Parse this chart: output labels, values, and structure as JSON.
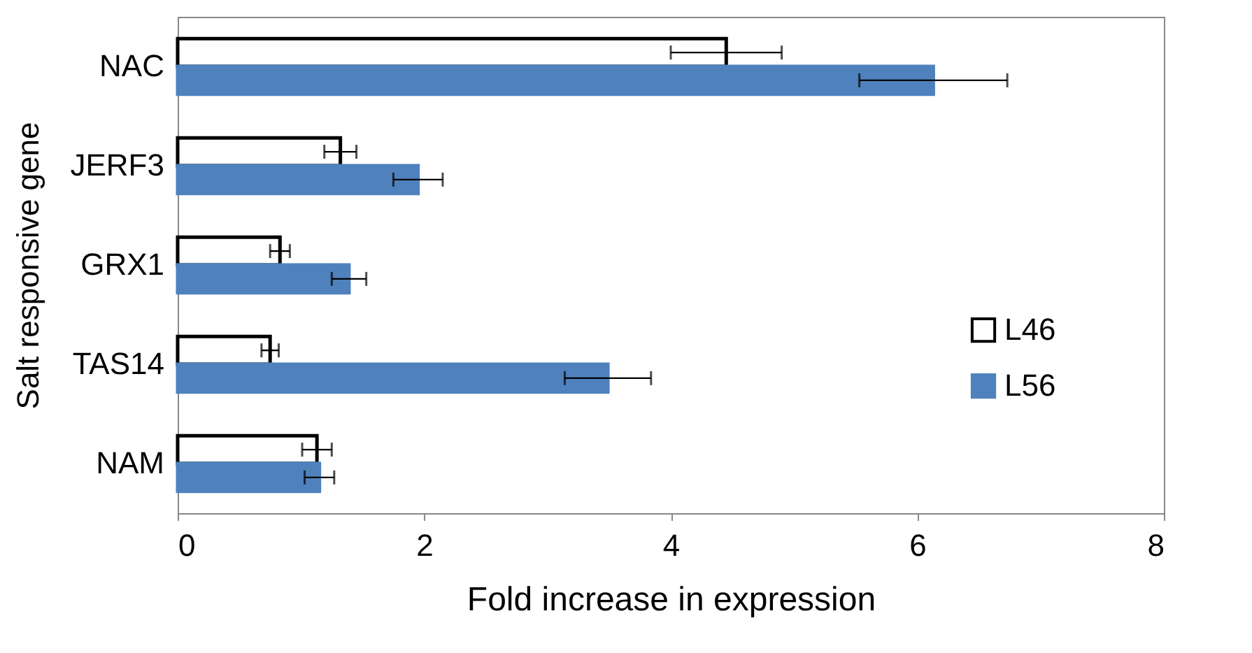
{
  "chart_data": {
    "type": "bar",
    "orientation": "horizontal",
    "xlabel": "Fold increase in expression",
    "ylabel": "Salt responsive gene",
    "categories": [
      "NAC",
      "JERF3",
      "GRX1",
      "TAS14",
      "NAM"
    ],
    "series": [
      {
        "name": "L46",
        "color": "#ffffff",
        "values": [
          4.45,
          1.32,
          0.83,
          0.75,
          1.13
        ],
        "errors": [
          0.45,
          0.13,
          0.08,
          0.07,
          0.12
        ]
      },
      {
        "name": "L56",
        "color": "#4f81bd",
        "values": [
          6.13,
          1.95,
          1.39,
          3.49,
          1.15
        ],
        "errors": [
          0.6,
          0.2,
          0.14,
          0.35,
          0.12
        ]
      }
    ],
    "xlim": [
      0,
      8
    ],
    "xticks": [
      0,
      2,
      4,
      6,
      8
    ],
    "grid": false,
    "legend": "right"
  }
}
